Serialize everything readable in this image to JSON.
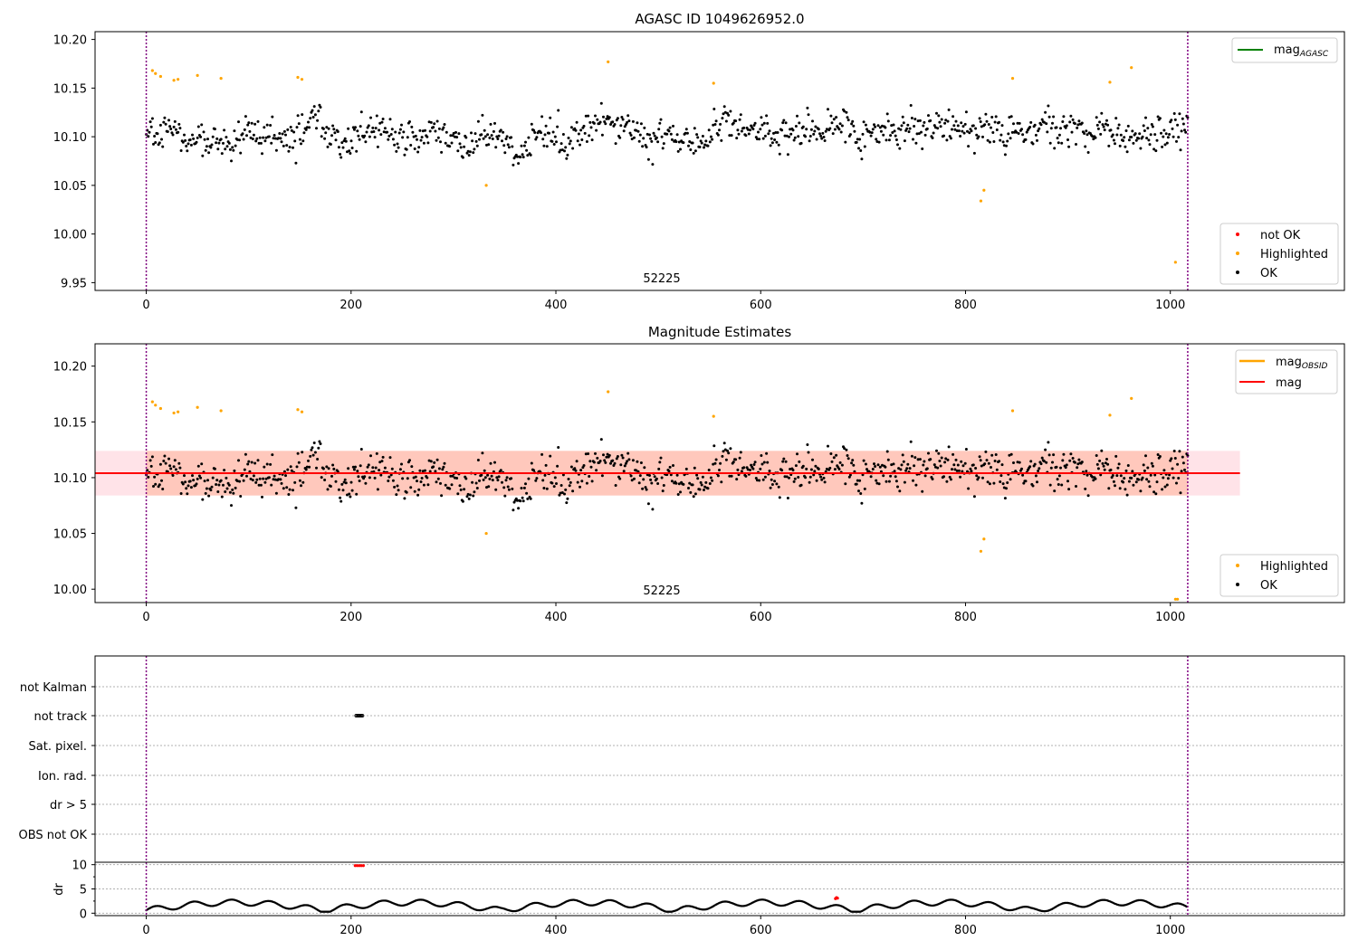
{
  "figure": {
    "title_top": "AGASC ID 1049626952.0",
    "title_mid": "Magnitude Estimates",
    "obsid_label": "52225"
  },
  "colors": {
    "ok": "#000000",
    "highlighted": "#ffa500",
    "not_ok": "#ff0000",
    "mag_line": "#ff0000",
    "mag_obsid": "#ffa500",
    "mag_agasc": "#008000",
    "obs_boundary": "#800080",
    "band_outer": "#ffc0cb",
    "band_inner": "#ffa07a"
  },
  "chart_data": [
    {
      "type": "scatter",
      "title": "AGASC ID 1049626952.0",
      "xlim": [
        -50,
        1170
      ],
      "ylim": [
        9.942,
        10.208
      ],
      "xticks": [
        0,
        200,
        400,
        600,
        800,
        1000
      ],
      "yticks": [
        9.95,
        10.0,
        10.05,
        10.1,
        10.15,
        10.2
      ],
      "ytick_labels": [
        "9.95",
        "10.00",
        "10.05",
        "10.10",
        "10.15",
        "10.20"
      ],
      "grid": false,
      "obs_boundaries": [
        0,
        1017
      ],
      "obsid_annotation": {
        "text": "52225",
        "x": 508
      },
      "legend_lines": {
        "placement": "upper right",
        "entries": [
          {
            "label": "mag",
            "sub": "AGASC",
            "color": "#008000"
          }
        ]
      },
      "legend_points": {
        "placement": "lower right",
        "entries": [
          {
            "label": "not OK",
            "color": "#ff0000"
          },
          {
            "label": "Highlighted",
            "color": "#ffa500"
          },
          {
            "label": "OK",
            "color": "#000000"
          }
        ]
      },
      "series": [
        {
          "name": "Highlighted",
          "points": [
            [
              6,
              10.168
            ],
            [
              9,
              10.165
            ],
            [
              14,
              10.162
            ],
            [
              27,
              10.158
            ],
            [
              31,
              10.159
            ],
            [
              50,
              10.163
            ],
            [
              73,
              10.16
            ],
            [
              148,
              10.161
            ],
            [
              152,
              10.159
            ],
            [
              332,
              10.05
            ],
            [
              451,
              10.177
            ],
            [
              554,
              10.155
            ],
            [
              815,
              10.034
            ],
            [
              818,
              10.045
            ],
            [
              846,
              10.16
            ],
            [
              941,
              10.156
            ],
            [
              962,
              10.171
            ],
            [
              1005,
              9.971
            ]
          ]
        }
      ],
      "ok_series": {
        "x_start": 0,
        "x_end": 1017,
        "count": 1017,
        "mean": 10.104,
        "spread": 0.042
      }
    },
    {
      "type": "scatter",
      "title": "Magnitude Estimates",
      "xlim": [
        -50,
        1170
      ],
      "ylim": [
        9.988,
        10.22
      ],
      "xticks": [
        0,
        200,
        400,
        600,
        800,
        1000
      ],
      "yticks": [
        10.0,
        10.05,
        10.1,
        10.15,
        10.2
      ],
      "ytick_labels": [
        "10.00",
        "10.05",
        "10.10",
        "10.15",
        "10.20"
      ],
      "grid": false,
      "obs_boundaries": [
        0,
        1017
      ],
      "obsid_annotation": {
        "text": "52225",
        "x": 508
      },
      "mag": 10.104,
      "mag_band_full": {
        "x": [
          -50,
          1068
        ],
        "y": [
          10.084,
          10.124
        ]
      },
      "mag_band_obs": {
        "x": [
          0,
          1017
        ],
        "y": [
          10.084,
          10.124
        ]
      },
      "legend_lines": {
        "placement": "upper right",
        "entries": [
          {
            "label": "mag",
            "sub": "OBSID",
            "color": "#ffa500"
          },
          {
            "label": "mag",
            "sub": "",
            "color": "#ff0000"
          }
        ]
      },
      "legend_points": {
        "placement": "lower right",
        "entries": [
          {
            "label": "Highlighted",
            "color": "#ffa500"
          },
          {
            "label": "OK",
            "color": "#000000"
          }
        ]
      },
      "series": [
        {
          "name": "Highlighted",
          "points": [
            [
              6,
              10.168
            ],
            [
              9,
              10.165
            ],
            [
              14,
              10.162
            ],
            [
              27,
              10.158
            ],
            [
              31,
              10.159
            ],
            [
              50,
              10.163
            ],
            [
              73,
              10.16
            ],
            [
              148,
              10.161
            ],
            [
              152,
              10.159
            ],
            [
              332,
              10.05
            ],
            [
              451,
              10.177
            ],
            [
              554,
              10.155
            ],
            [
              815,
              10.034
            ],
            [
              818,
              10.045
            ],
            [
              846,
              10.16
            ],
            [
              941,
              10.156
            ],
            [
              962,
              10.171
            ],
            [
              1005,
              9.991
            ],
            [
              1007,
              9.991
            ]
          ]
        }
      ],
      "ok_series": {
        "x_start": 0,
        "x_end": 1017,
        "count": 1017,
        "mean": 10.104,
        "spread": 0.042
      }
    },
    {
      "type": "scatter",
      "xlim": [
        -50,
        1170
      ],
      "flag_labels": [
        "not Kalman",
        "not track",
        "Sat. pixel.",
        "Ion. rad.",
        "dr > 5",
        "OBS not OK"
      ],
      "flag_points": [
        {
          "flag": "not track",
          "x_start": 205,
          "x_end": 211
        }
      ],
      "obs_boundaries": [
        0,
        1017
      ]
    },
    {
      "type": "line",
      "ylabel": "dr",
      "xlim": [
        -50,
        1170
      ],
      "ylim": [
        -0.5,
        10.5
      ],
      "xticks": [
        0,
        200,
        400,
        600,
        800,
        1000
      ],
      "yticks": [
        0,
        5,
        10
      ],
      "minor_yticks": [
        2.5,
        7.5
      ],
      "obs_boundaries": [
        0,
        1017
      ],
      "not_ok_points": [
        [
          204,
          9.8
        ],
        [
          206,
          9.8
        ],
        [
          208,
          9.8
        ],
        [
          210,
          9.8
        ],
        [
          212,
          9.8
        ],
        [
          673,
          3.0
        ],
        [
          674,
          3.2
        ],
        [
          675,
          3.1
        ]
      ],
      "dr_envelope": {
        "count": 1017,
        "min": 0.3,
        "max": 2.8
      }
    }
  ]
}
